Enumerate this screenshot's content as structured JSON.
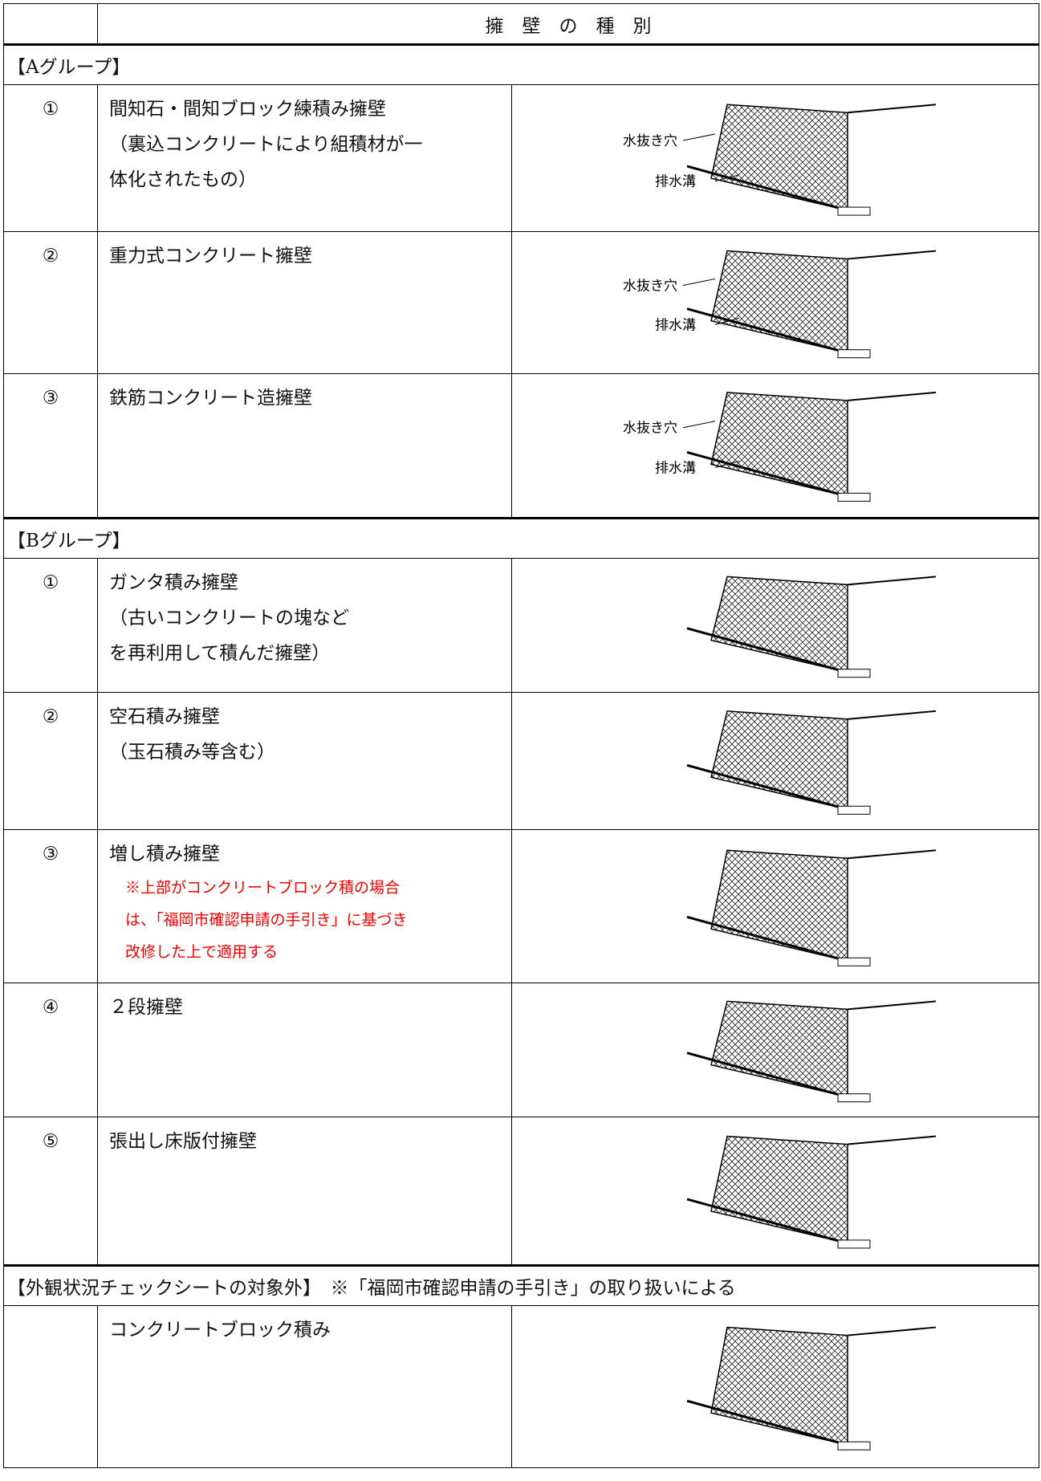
{
  "header": {
    "title": "擁　壁　の　種　別"
  },
  "groups": [
    {
      "title": "【Aグループ】",
      "rows": [
        {
          "no": "①",
          "name": [
            "間知石・間知ブロック練積み擁壁",
            "（裏込コンクリートにより組積材が一",
            "体化されたもの）"
          ],
          "figure_labels": [
            "水抜き穴",
            "排水溝"
          ]
        },
        {
          "no": "②",
          "name": [
            "重力式コンクリート擁壁"
          ],
          "figure_labels": [
            "水抜き穴",
            "排水溝"
          ]
        },
        {
          "no": "③",
          "name": [
            "鉄筋コンクリート造擁壁"
          ],
          "figure_labels": [
            "水抜き穴",
            "排水溝"
          ]
        }
      ]
    },
    {
      "title": "【Bグループ】",
      "rows": [
        {
          "no": "①",
          "name": [
            "ガンタ積み擁壁",
            "（古いコンクリートの塊など",
            "を再利用して積んだ擁壁）"
          ]
        },
        {
          "no": "②",
          "name": [
            "空石積み擁壁",
            "（玉石積み等含む）"
          ]
        },
        {
          "no": "③",
          "name": [
            "増し積み擁壁"
          ],
          "note": [
            "※上部がコンクリートブロック積の場合",
            "は、「福岡市確認申請の手引き」に基づき",
            "改修した上で適用する"
          ]
        },
        {
          "no": "④",
          "name": [
            "２段擁壁"
          ]
        },
        {
          "no": "⑤",
          "name": [
            "張出し床版付擁壁"
          ]
        }
      ]
    },
    {
      "title": "【外観状況チェックシートの対象外】　※「福岡市確認申請の手引き」の取り扱いによる",
      "rows": [
        {
          "name": [
            "コンクリートブロック積み"
          ]
        }
      ]
    }
  ]
}
